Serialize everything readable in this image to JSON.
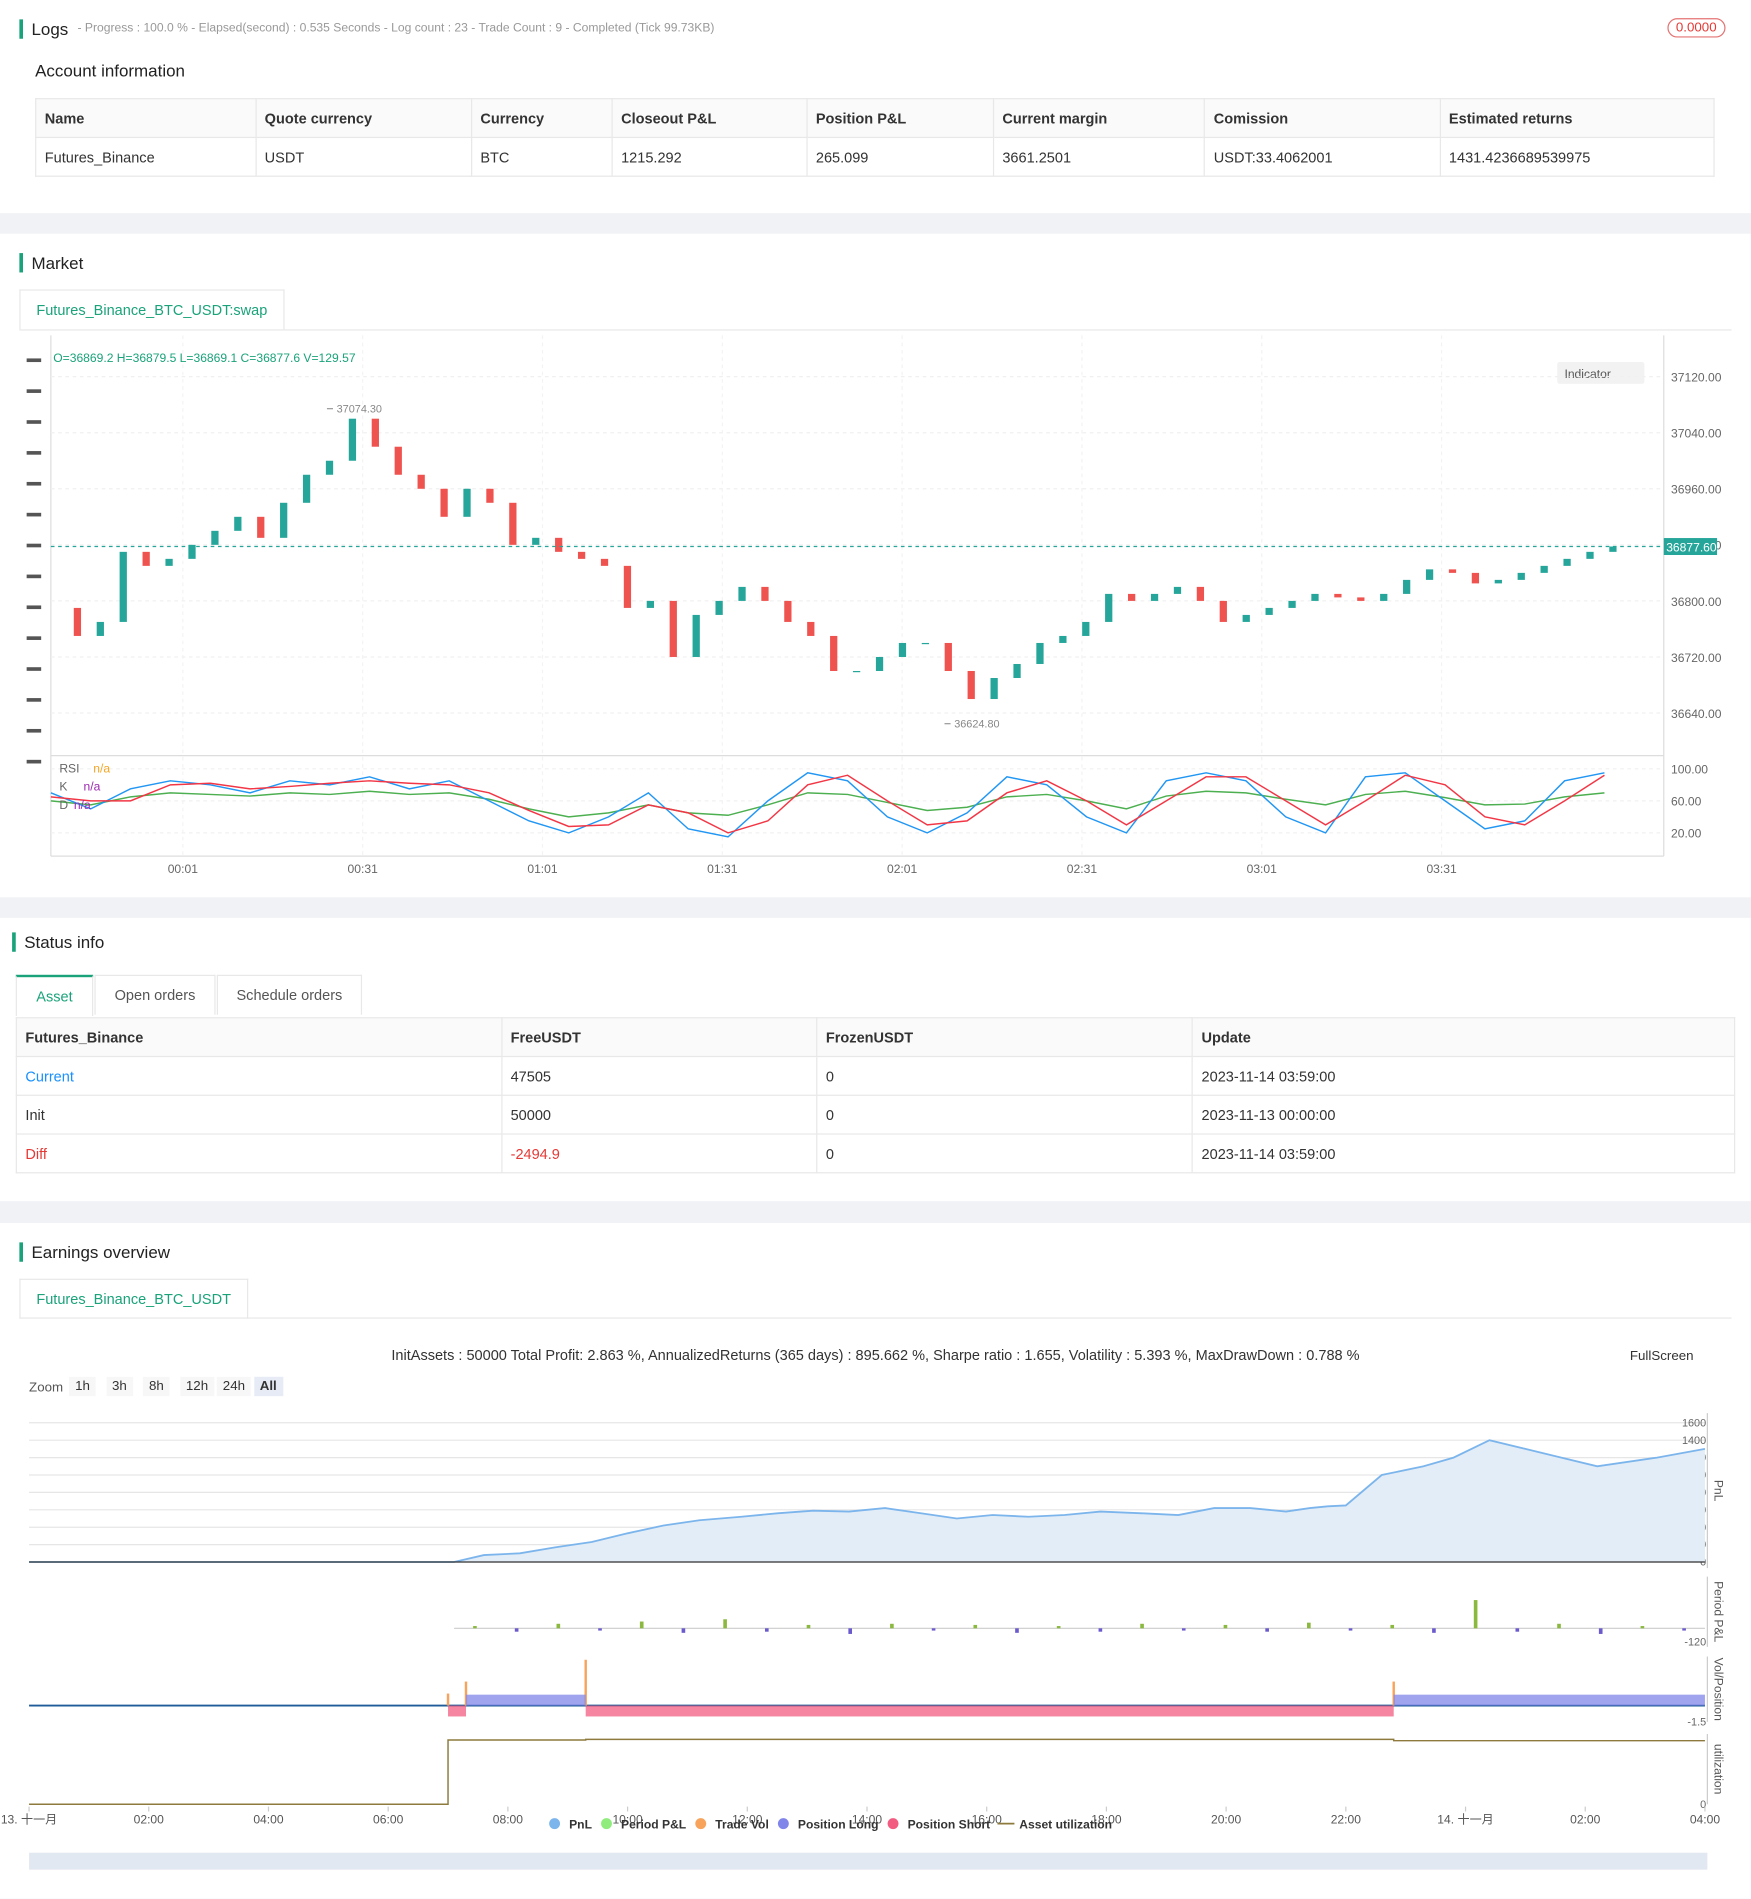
{
  "logs": {
    "title": "Logs",
    "progress": "- Progress : 100.0 % - Elapsed(second) : 0.535  Seconds - Log count : 23 - Trade Count : 9 - Completed (Tick 99.73KB)",
    "badge": "0.0000"
  },
  "account": {
    "title": "Account information",
    "columns": [
      "Name",
      "Quote currency",
      "Currency",
      "Closeout P&L",
      "Position P&L",
      "Current margin",
      "Comission",
      "Estimated returns"
    ],
    "rows": [
      [
        "Futures_Binance",
        "USDT",
        "BTC",
        1215.292,
        265.099,
        3661.2501,
        "USDT:33.4062001",
        1431.4236689539975
      ]
    ]
  },
  "market": {
    "title": "Market",
    "tab": "Futures_Binance_BTC_USDT:swap",
    "ohlc": "O=36869.2 H=36879.5 L=36869.1 C=36877.6 V=129.57",
    "indicator_button": "Indicator"
  },
  "status": {
    "title": "Status info",
    "tabs": [
      "Asset",
      "Open orders",
      "Schedule orders"
    ],
    "columns": [
      "Futures_Binance",
      "FreeUSDT",
      "FrozenUSDT",
      "Update"
    ],
    "rows": [
      [
        "Current",
        47505,
        0,
        "2023-11-14 03:59:00"
      ],
      [
        "Init",
        50000,
        0,
        "2023-11-13 00:00:00"
      ],
      [
        "Diff",
        -2494.9,
        0,
        "2023-11-14 03:59:00"
      ]
    ]
  },
  "earnings": {
    "title": "Earnings overview",
    "tab": "Futures_Binance_BTC_USDT",
    "summary": "InitAssets : 50000 Total Profit: 2.863 %, AnnualizedReturns (365 days) : 895.662 %, Sharpe ratio : 1.655, Volatility : 5.393 %, MaxDrawDown : 0.788 %",
    "zoom": "Zoom",
    "zoom_buttons": [
      "1h",
      "3h",
      "8h",
      "12h",
      "24h",
      "All"
    ],
    "fullscreen": "FullScreen"
  },
  "chart_data": [
    {
      "type": "candlestick",
      "colors": {
        "up": "#26a69a",
        "down": "#ef5350"
      },
      "values": [
        36790,
        36750,
        36770,
        36870,
        36850,
        36860,
        36880,
        36900,
        36920,
        36890,
        36940,
        36980,
        37000,
        37060,
        37020,
        36980,
        36960,
        36920,
        36960,
        36940,
        36880,
        36890,
        36870,
        36860,
        36850,
        36790,
        36800,
        36720,
        36780,
        36800,
        36820,
        36800,
        36770,
        36750,
        36700,
        36700,
        36720,
        36740,
        36740,
        36700,
        36660,
        36690,
        36710,
        36740,
        36750,
        36770,
        36810,
        36800,
        36810,
        36820,
        36800,
        36770,
        36780,
        36790,
        36800,
        36810,
        36805,
        36800,
        36810,
        36830,
        36845,
        36840,
        36825,
        36830,
        36840,
        36850,
        36860,
        36870,
        36877.6
      ],
      "ylim": [
        36581,
        37165
      ],
      "yticks": [
        {
          "value": 36640,
          "label": "36640.00"
        },
        {
          "value": 36720,
          "label": "36720.00"
        },
        {
          "value": 36800,
          "label": "36800.00"
        },
        {
          "value": 36880,
          "label": "36880.00"
        },
        {
          "value": 36960,
          "label": "36960.00"
        },
        {
          "value": 37040,
          "label": "37040.00"
        },
        {
          "value": 37120,
          "label": "37120.00"
        }
      ],
      "last_price": {
        "value": 36877.6,
        "label": "36877.60"
      },
      "annotations": [
        {
          "value": 37074.3,
          "label": "37074.30"
        },
        {
          "value": 36624.8,
          "label": "36624.80"
        }
      ],
      "xticks": [
        "00:01",
        "00:31",
        "01:01",
        "01:31",
        "02:01",
        "02:31",
        "03:01",
        "03:31"
      ]
    },
    {
      "type": "line",
      "ylim": [
        -9,
        115
      ],
      "yticks": [
        {
          "value": 100,
          "label": "100.00"
        },
        {
          "value": 60,
          "label": "60.00"
        },
        {
          "value": 20,
          "label": "20.00"
        }
      ],
      "series": [
        {
          "name": "RSI",
          "status": "n/a",
          "color": "#4caf50",
          "values": [
            60,
            55,
            65,
            70,
            68,
            66,
            70,
            68,
            72,
            68,
            70,
            62,
            50,
            40,
            45,
            55,
            45,
            42,
            55,
            70,
            68,
            58,
            48,
            52,
            65,
            68,
            60,
            50,
            66,
            72,
            70,
            62,
            55,
            68,
            72,
            64,
            55,
            56,
            65,
            70
          ]
        },
        {
          "name": "K",
          "status": "n/a",
          "color": "#2196f3",
          "values": [
            70,
            50,
            75,
            85,
            80,
            70,
            85,
            80,
            90,
            75,
            85,
            60,
            35,
            20,
            40,
            70,
            25,
            15,
            60,
            95,
            85,
            40,
            20,
            45,
            90,
            80,
            40,
            20,
            85,
            95,
            85,
            40,
            20,
            90,
            95,
            60,
            25,
            35,
            85,
            95
          ]
        },
        {
          "name": "D",
          "status": "n/a",
          "color": "#f23645",
          "values": [
            65,
            60,
            60,
            80,
            82,
            75,
            78,
            82,
            85,
            82,
            80,
            70,
            48,
            28,
            30,
            55,
            45,
            20,
            35,
            80,
            92,
            60,
            30,
            35,
            70,
            85,
            60,
            30,
            60,
            90,
            90,
            60,
            30,
            60,
            92,
            80,
            40,
            30,
            60,
            92
          ]
        }
      ]
    },
    {
      "type": "area",
      "ylabel": "PnL",
      "xlim": [
        0,
        28
      ],
      "ylim": [
        -70,
        1711
      ],
      "yticks": [
        0,
        200,
        400,
        600,
        800,
        1000,
        1200,
        1400,
        1600
      ],
      "x": [
        0,
        7.1,
        7.6,
        8.2,
        8.8,
        9.4,
        10,
        10.6,
        11.2,
        11.9,
        12.5,
        13.1,
        13.7,
        14.3,
        14.9,
        15.5,
        16.1,
        16.7,
        17.3,
        17.9,
        18.6,
        19.2,
        19.8,
        20.4,
        21,
        21.4,
        21.7,
        22,
        22.6,
        23.3,
        23.8,
        24.4,
        25,
        25.6,
        26.2,
        27.2,
        28
      ],
      "series": [
        {
          "name": "PnL",
          "color": "#7cb5ec",
          "values": [
            0,
            0,
            80,
            100,
            170,
            230,
            330,
            420,
            480,
            520,
            560,
            590,
            580,
            620,
            560,
            500,
            540,
            520,
            540,
            580,
            560,
            540,
            620,
            620,
            580,
            620,
            640,
            650,
            1000,
            1100,
            1200,
            1400,
            1300,
            1200,
            1100,
            1200,
            1300
          ]
        }
      ]
    },
    {
      "type": "bar",
      "ylabel": "Period P&L",
      "ylim": [
        -164,
        458
      ],
      "yticks": [
        {
          "value": -120,
          "label": "-120"
        }
      ],
      "colors": {
        "up": "#8bb83f",
        "down": "#6a5acd"
      },
      "series": [
        {
          "name": "Period P&L",
          "color": "#90ed7d",
          "values": [
            20,
            -30,
            40,
            -20,
            60,
            -40,
            80,
            -30,
            30,
            -50,
            40,
            -20,
            30,
            -40,
            20,
            -30,
            40,
            -20,
            30,
            -30,
            50,
            -20,
            30,
            -40,
            250,
            -30,
            40,
            -50,
            20,
            -20
          ]
        }
      ]
    },
    {
      "type": "step",
      "ylabel": "Vol/Position",
      "xlim": [
        0,
        28
      ],
      "ylim": [
        -1.5,
        4.5
      ],
      "yticks": [
        -1.5
      ],
      "x": [
        7,
        7.3,
        9.3,
        22.8,
        28
      ],
      "series": [
        {
          "name": "Trade Vol",
          "color": "#f7a35c",
          "values": [
            1.1,
            2.2,
            4.2,
            2.2,
            null
          ]
        },
        {
          "name": "Position Long",
          "color": "#8085e9",
          "values": [
            0,
            1,
            0,
            1,
            null
          ]
        },
        {
          "name": "Position Short",
          "color": "#f15c80",
          "values": [
            1,
            0,
            1,
            0,
            null
          ]
        }
      ]
    },
    {
      "type": "step",
      "ylabel": "utilization",
      "xlim": [
        0,
        28
      ],
      "ylim": [
        0,
        1.05
      ],
      "yticks": [
        0
      ],
      "x": [
        0,
        7,
        9.3,
        22.8,
        28
      ],
      "series": [
        {
          "name": "Asset utilization",
          "color": "#8d7a3c",
          "values": [
            0,
            0.96,
            0.97,
            0.95,
            0.95
          ]
        }
      ],
      "xticks": [
        {
          "value": 0,
          "label": "13. 十一月"
        },
        {
          "value": 2,
          "label": "02:00"
        },
        {
          "value": 4,
          "label": "04:00"
        },
        {
          "value": 6,
          "label": "06:00"
        },
        {
          "value": 8,
          "label": "08:00"
        },
        {
          "value": 10,
          "label": "10:00"
        },
        {
          "value": 12,
          "label": "12:00"
        },
        {
          "value": 14,
          "label": "14:00"
        },
        {
          "value": 16,
          "label": "16:00"
        },
        {
          "value": 18,
          "label": "18:00"
        },
        {
          "value": 20,
          "label": "20:00"
        },
        {
          "value": 22,
          "label": "22:00"
        },
        {
          "value": 24,
          "label": "14. 十一月"
        },
        {
          "value": 26,
          "label": "02:00"
        },
        {
          "value": 28,
          "label": "04:00"
        }
      ]
    }
  ]
}
